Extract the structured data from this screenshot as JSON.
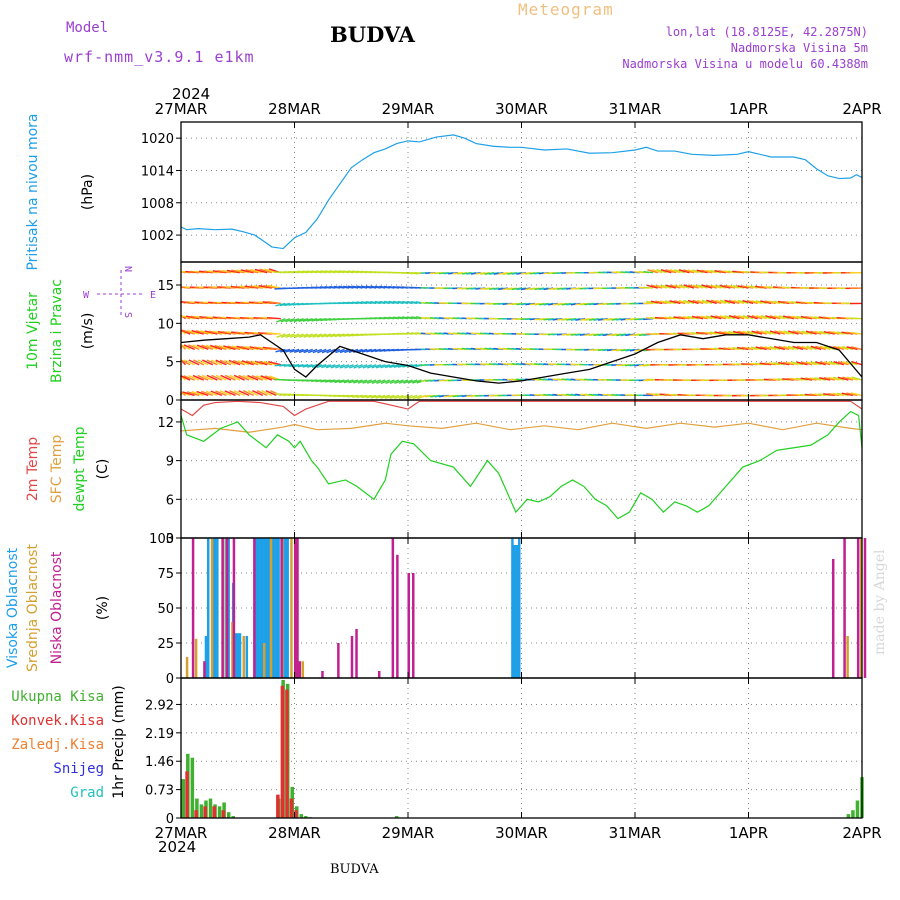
{
  "header": {
    "model_label": "Model",
    "model_version": "wrf-nmm_v3.9.1 e1km",
    "station": "BUDVA",
    "product": "Meteogram",
    "lonlat": "lon,lat (18.8125E, 42.2875N)",
    "altitude": "Nadmorska Visina 5m",
    "model_altitude": "Nadmorska Visina u modelu 60.4388m"
  },
  "footer": {
    "station": "BUDVA",
    "credit": "made by Angel"
  },
  "time_axis": {
    "year": "2024",
    "dates": [
      "27MAR",
      "28MAR",
      "29MAR",
      "30MAR",
      "31MAR",
      "1APR",
      "2APR"
    ]
  },
  "colors": {
    "pressure": "#1ea0e8",
    "temp2m": "#e04848",
    "sfc_temp": "#e0a040",
    "dewpt": "#20d020",
    "cloud_high": "#1ea0e8",
    "cloud_mid": "#d4a030",
    "cloud_low": "#c02090",
    "precip_total": "#40b030",
    "precip_conv": "#e03030",
    "precip_frozen": "#f08030",
    "snow": "#3030e0",
    "hail": "#20c0c0",
    "wind_dir": "#9a3fd0"
  },
  "chart_data": [
    {
      "id": "pressure",
      "type": "line",
      "ylabel": [
        "Pritisak na nivou mora",
        "(hPa)"
      ],
      "yticks": [
        1002,
        1008,
        1014,
        1020
      ],
      "ylim": [
        997,
        1023
      ],
      "grid": true,
      "series": [
        {
          "name": "Pritisak na nivou mora",
          "x": [
            0,
            0.05,
            0.15,
            0.3,
            0.45,
            0.55,
            0.65,
            0.72,
            0.8,
            0.9,
            1.0,
            1.1,
            1.2,
            1.3,
            1.4,
            1.5,
            1.6,
            1.7,
            1.8,
            1.9,
            2.0,
            2.1,
            2.25,
            2.4,
            2.5,
            2.6,
            2.75,
            2.9,
            3.0,
            3.2,
            3.4,
            3.6,
            3.8,
            4.0,
            4.1,
            4.2,
            4.35,
            4.5,
            4.7,
            4.9,
            5.0,
            5.2,
            5.4,
            5.5,
            5.6,
            5.7,
            5.8,
            5.9,
            5.95,
            6.0
          ],
          "values": [
            1003.5,
            1003.0,
            1003.2,
            1003.0,
            1003.1,
            1002.6,
            1002.0,
            1001.0,
            999.8,
            999.5,
            1001.5,
            1002.5,
            1005.0,
            1008.5,
            1011.5,
            1014.5,
            1016.0,
            1017.3,
            1018.0,
            1019.0,
            1019.5,
            1019.3,
            1020.2,
            1020.6,
            1020.0,
            1019.0,
            1018.5,
            1018.3,
            1018.3,
            1017.8,
            1018.0,
            1017.2,
            1017.3,
            1017.8,
            1018.3,
            1017.6,
            1017.6,
            1017.0,
            1016.8,
            1017.0,
            1017.5,
            1016.5,
            1016.5,
            1016.0,
            1014.3,
            1013.0,
            1012.5,
            1012.6,
            1013.2,
            1012.7
          ]
        }
      ]
    },
    {
      "id": "wind",
      "type": "line",
      "ylabel": [
        "10m Vjetar",
        "Brzina i Pravac",
        "(m/s)"
      ],
      "direction_legend": {
        "n": "N",
        "s": "S",
        "e": "E",
        "w": "W"
      },
      "yticks": [
        0,
        5,
        10,
        15
      ],
      "ylim": [
        0,
        18
      ],
      "grid": true,
      "series": [
        {
          "name": "10m Vjetar Brzina",
          "x": [
            0,
            0.2,
            0.4,
            0.6,
            0.7,
            0.8,
            0.9,
            1.0,
            1.1,
            1.2,
            1.4,
            1.6,
            1.8,
            2.0,
            2.2,
            2.4,
            2.6,
            2.8,
            3.0,
            3.2,
            3.4,
            3.6,
            3.8,
            4.0,
            4.2,
            4.4,
            4.6,
            4.8,
            5.0,
            5.2,
            5.4,
            5.6,
            5.8,
            6.0
          ],
          "values": [
            7.5,
            7.8,
            8.0,
            8.2,
            8.5,
            7.5,
            6.5,
            4.0,
            3.0,
            4.5,
            7.0,
            6.0,
            5.0,
            4.5,
            3.5,
            3.0,
            2.5,
            2.2,
            2.5,
            3.0,
            3.5,
            4.0,
            5.0,
            6.0,
            7.5,
            8.5,
            8.0,
            8.5,
            8.5,
            8.0,
            7.5,
            7.5,
            6.5,
            3.0
          ]
        }
      ]
    },
    {
      "id": "temperature",
      "type": "line",
      "ylabel": [
        "2m Temp",
        "SFC Temp",
        "dewpt Temp",
        "(C)"
      ],
      "yticks": [
        3,
        6,
        9,
        12
      ],
      "ylim": [
        3,
        13.7
      ],
      "grid": true,
      "series": [
        {
          "name": "2m Temp",
          "x": [
            0,
            0.1,
            0.2,
            0.3,
            0.5,
            0.7,
            0.9,
            1.0,
            1.1,
            1.3,
            1.5,
            1.7,
            1.9,
            2.0,
            2.1,
            2.2,
            2.4,
            2.6,
            5.9,
            6.0
          ],
          "values": [
            13.0,
            12.5,
            13.3,
            13.5,
            13.6,
            13.5,
            13.2,
            12.5,
            13.0,
            13.6,
            13.6,
            13.6,
            13.2,
            13.0,
            13.6,
            13.6,
            13.6,
            13.6,
            13.6,
            13.0
          ]
        },
        {
          "name": "SFC Temp",
          "x": [
            0,
            0.3,
            0.6,
            0.9,
            1.0,
            1.2,
            1.5,
            1.8,
            2.0,
            2.3,
            2.6,
            2.9,
            3.2,
            3.5,
            3.8,
            4.1,
            4.4,
            4.7,
            5.0,
            5.3,
            5.6,
            5.9,
            6.0
          ],
          "values": [
            11.3,
            11.5,
            11.2,
            11.6,
            11.8,
            11.4,
            11.5,
            11.9,
            11.7,
            11.5,
            11.9,
            11.4,
            11.7,
            11.4,
            11.9,
            11.5,
            11.9,
            11.6,
            11.9,
            11.4,
            11.9,
            11.5,
            11.4
          ]
        },
        {
          "name": "dewpt Temp",
          "x": [
            0,
            0.05,
            0.2,
            0.35,
            0.5,
            0.6,
            0.75,
            0.85,
            0.95,
            1.0,
            1.05,
            1.15,
            1.2,
            1.3,
            1.45,
            1.55,
            1.7,
            1.8,
            1.85,
            1.95,
            2.05,
            2.2,
            2.4,
            2.55,
            2.7,
            2.8,
            2.95,
            3.05,
            3.15,
            3.25,
            3.35,
            3.45,
            3.55,
            3.65,
            3.75,
            3.85,
            3.95,
            4.05,
            4.15,
            4.25,
            4.35,
            4.45,
            4.55,
            4.65,
            4.8,
            4.95,
            5.1,
            5.25,
            5.4,
            5.55,
            5.7,
            5.8,
            5.9,
            5.97,
            6.0
          ],
          "values": [
            12.5,
            11.0,
            10.5,
            11.5,
            12.0,
            11.0,
            10.0,
            11.0,
            10.5,
            10.0,
            10.5,
            9.0,
            8.5,
            7.2,
            7.5,
            7.0,
            6.0,
            7.5,
            9.5,
            10.5,
            10.3,
            9.0,
            8.5,
            7.0,
            9.0,
            8.0,
            5.0,
            6.0,
            5.8,
            6.2,
            7.0,
            7.5,
            7.0,
            6.0,
            5.5,
            4.5,
            5.0,
            6.5,
            6.0,
            5.0,
            5.8,
            5.5,
            5.0,
            5.5,
            7.0,
            8.5,
            9.0,
            9.8,
            10.0,
            10.2,
            11.0,
            12.0,
            12.8,
            12.5,
            10.0
          ]
        }
      ]
    },
    {
      "id": "clouds",
      "type": "bar",
      "ylabel": [
        "Visoka Oblacnost",
        "Srednja Oblacnost",
        "Niska Oblacnost",
        "(%)"
      ],
      "yticks": [
        0,
        25,
        50,
        75,
        100
      ],
      "ylim": [
        0,
        100
      ],
      "grid": true,
      "series": [
        {
          "name": "Visoka Oblacnost",
          "x": [
            0.22,
            0.24,
            0.28,
            0.3,
            0.32,
            0.4,
            0.42,
            0.46,
            0.48,
            0.5,
            0.52,
            0.58,
            0.66,
            0.68,
            0.7,
            0.72,
            0.74,
            0.76,
            0.78,
            0.8,
            0.82,
            0.84,
            0.86,
            0.9,
            0.92,
            0.94,
            2.92,
            2.94,
            2.96,
            2.98
          ],
          "values": [
            30,
            100,
            100,
            100,
            100,
            100,
            100,
            68,
            32,
            32,
            32,
            30,
            100,
            100,
            100,
            100,
            100,
            100,
            100,
            100,
            100,
            100,
            100,
            100,
            100,
            100,
            100,
            95,
            95,
            100
          ]
        },
        {
          "name": "Srednja Oblacnost",
          "x": [
            0.04,
            0.12,
            0.26,
            0.36,
            0.44,
            0.54,
            0.72,
            0.78,
            0.88,
            0.96,
            1.06,
            5.86,
            5.98
          ],
          "values": [
            15,
            28,
            100,
            100,
            40,
            30,
            25,
            100,
            100,
            100,
            12,
            30,
            100
          ]
        },
        {
          "name": "Niska Oblacnost",
          "x": [
            0.08,
            0.18,
            0.34,
            0.38,
            0.44,
            0.62,
            0.86,
            0.98,
            1.0,
            1.02,
            1.22,
            1.36,
            1.48,
            1.52,
            1.72,
            1.84,
            1.88,
            1.98,
            2.02,
            5.72,
            5.82,
            5.94,
            6.0
          ],
          "values": [
            100,
            12,
            100,
            100,
            100,
            100,
            100,
            100,
            100,
            12,
            5,
            25,
            30,
            35,
            5,
            100,
            88,
            75,
            75,
            85,
            100,
            100,
            100
          ]
        }
      ]
    },
    {
      "id": "precip",
      "type": "bar",
      "ylabel": [
        "Ukupna Kisa",
        "Konvek.Kisa",
        "Zaledj.Kisa",
        "Snijeg",
        "Grad",
        "1hr Precip (mm)"
      ],
      "yticks": [
        0,
        0.73,
        1.46,
        2.19,
        2.92
      ],
      "ylim": [
        0,
        3.6
      ],
      "grid": true,
      "series": [
        {
          "name": "Ukupna Kisa",
          "x": [
            0.02,
            0.06,
            0.1,
            0.14,
            0.18,
            0.22,
            0.26,
            0.3,
            0.34,
            0.38,
            0.42,
            0.46,
            0.86,
            0.9,
            0.94,
            0.98,
            1.02,
            1.06,
            1.1,
            1.14,
            1.9,
            5.88,
            5.92,
            5.96,
            6.0
          ],
          "values": [
            1.0,
            1.65,
            1.55,
            0.5,
            0.35,
            0.45,
            0.5,
            0.35,
            0.3,
            0.4,
            0.15,
            0.05,
            0.5,
            3.55,
            3.45,
            0.8,
            0.3,
            0.1,
            0.05,
            0.02,
            0.05,
            0.1,
            0.2,
            0.45,
            1.05
          ]
        },
        {
          "name": "Konvek.Kisa",
          "x": [
            0.04,
            0.12,
            0.2,
            0.28,
            0.36,
            0.84,
            0.88,
            0.92,
            0.96,
            1.0
          ],
          "values": [
            1.2,
            0.2,
            0.3,
            0.3,
            0.2,
            0.6,
            3.4,
            3.3,
            0.5,
            0.2
          ]
        }
      ]
    }
  ]
}
